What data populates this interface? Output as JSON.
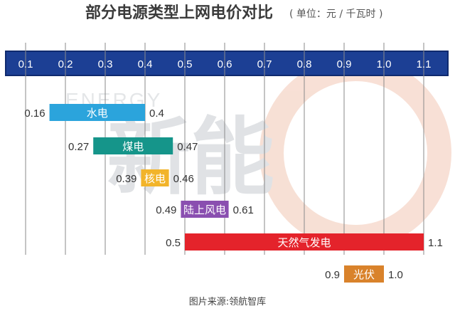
{
  "header": {
    "title": "部分电源类型上网电价对比",
    "unit": "( 单位：元 / 千瓦时 )"
  },
  "watermark": {
    "text": "新能",
    "english": "ENERGY"
  },
  "footer": {
    "source": "图片来源:领航智库"
  },
  "colors": {
    "axis_band": "#1c3f94",
    "axis_band_edge": "#0f2a6e",
    "gridline": "#8a8a8a",
    "watermark_ring": "#f2c7b4"
  },
  "chart_data": {
    "type": "bar",
    "orientation": "horizontal-range",
    "title": "部分电源类型上网电价对比",
    "unit": "元 / 千瓦时",
    "xlim": [
      0.1,
      1.1
    ],
    "x_ticks": [
      "0.1",
      "0.2",
      "0.3",
      "0.4",
      "0.5",
      "0.6",
      "0.7",
      "0.8",
      "0.9",
      "1.0",
      "1.1"
    ],
    "grid": true,
    "series": [
      {
        "label": "水电",
        "min": 0.16,
        "max": 0.4,
        "min_label": "0.16",
        "max_label": "0.4",
        "color": "#2ba4dc"
      },
      {
        "label": "煤电",
        "min": 0.27,
        "max": 0.47,
        "min_label": "0.27",
        "max_label": "0.47",
        "color": "#15958a"
      },
      {
        "label": "核电",
        "min": 0.39,
        "max": 0.46,
        "min_label": "0.39",
        "max_label": "0.46",
        "color": "#f2b42a"
      },
      {
        "label": "陆上风电",
        "min": 0.49,
        "max": 0.61,
        "min_label": "0.49",
        "max_label": "0.61",
        "color": "#8a4fb0"
      },
      {
        "label": "天然气发电",
        "min": 0.5,
        "max": 1.1,
        "min_label": "0.5",
        "max_label": "1.1",
        "color": "#e4232b"
      },
      {
        "label": "光伏",
        "min": 0.9,
        "max": 1.0,
        "min_label": "0.9",
        "max_label": "1.0",
        "color": "#d9822b"
      }
    ]
  }
}
